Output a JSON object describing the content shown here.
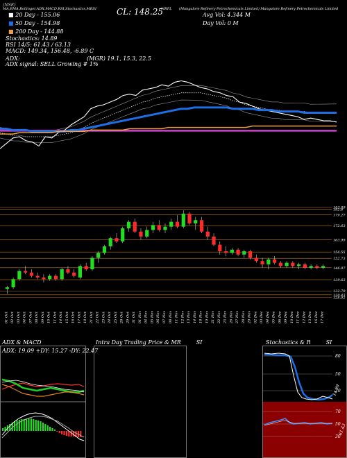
{
  "header": {
    "exchange_label": "(NSE)",
    "strip": [
      "MA,EMA,Bollinger,ADX,MACD,RSI,Stochastics,MRSI",
      "(Mangalore Refinery Petrochemicals Limited) Mangalore Refinery Petrochemicals Limited"
    ],
    "close": "CL: 148.25",
    "symbol": "MRPL",
    "avg_vol": "Avg Vol: 4.344  M",
    "day_vol": "Day Vol: 0  M",
    "ma20": "20  Day - 155.06",
    "ma50": "50  Day - 154.98",
    "ma200": "200  Day - 144.88",
    "stoch": "Stochastics: 14.89",
    "rsi": "RSI 14/5: 61.43 / 63.13",
    "macd": "MACD: 149.34, 156.48,  -6.89  C",
    "adx": "ADX:",
    "adx_vals": "(MGR) 19.1, 15.3, 22.5",
    "adx_signal": "ADX  signal: SELL  Growing  # 1%"
  },
  "colors": {
    "ma20": "#ffffff",
    "ma50": "#1e6ee6",
    "ma200": "#f0a040",
    "bb": "#aaaaaa",
    "up": "#22dd22",
    "down": "#ff2a2a",
    "magenta": "#cc44cc",
    "gridline": "#c07820"
  },
  "chart_data": [
    {
      "type": "line",
      "title": "Moving averages",
      "x": [
        "01 Oct",
        "02 Oct",
        "03 Oct",
        "04 Oct",
        "07 Oct",
        "08 Oct",
        "09 Oct",
        "10 Oct",
        "11 Oct",
        "14 Oct",
        "15 Oct",
        "16 Oct",
        "17 Oct",
        "18 Oct",
        "21 Oct",
        "22 Oct",
        "23 Oct",
        "24 Oct",
        "25 Oct",
        "28 Oct",
        "29 Oct",
        "31 Oct",
        "01 Nov",
        "04 Nov",
        "05 Nov",
        "06 Nov",
        "07 Nov",
        "08 Nov",
        "11 Nov",
        "12 Nov",
        "13 Nov",
        "14 Nov",
        "18 Nov",
        "19 Nov",
        "21 Nov",
        "22 Nov",
        "25 Nov",
        "26 Nov",
        "27 Nov",
        "28 Nov",
        "29 Nov",
        "02 Dec",
        "03 Dec",
        "04 Dec",
        "05 Dec",
        "06 Dec",
        "09 Dec",
        "10 Dec",
        "11 Dec",
        "12 Dec",
        "13 Dec",
        "16 Dec",
        "17 Dec"
      ],
      "series": [
        {
          "name": "Price",
          "values": [
            128,
            132,
            136,
            137,
            134,
            133,
            130,
            137,
            136,
            140,
            142,
            146,
            149,
            152,
            158,
            160,
            161,
            163,
            165,
            168,
            169,
            168,
            172,
            173,
            174,
            176,
            175,
            178,
            179,
            178,
            176,
            174,
            173,
            171,
            170,
            168,
            167,
            163,
            162,
            160,
            158,
            157,
            156,
            155,
            154,
            153,
            152,
            150,
            151,
            150,
            149,
            149,
            148
          ]
        },
        {
          "name": "20 Day",
          "values": [
            140,
            139,
            138,
            138,
            137,
            137,
            137,
            137,
            137,
            138,
            139,
            140,
            142,
            144,
            147,
            149,
            151,
            153,
            155,
            157,
            159,
            161,
            163,
            164,
            166,
            167,
            168,
            169,
            170,
            170,
            170,
            170,
            169,
            168,
            167,
            166,
            164,
            163,
            161,
            160,
            159,
            158,
            157,
            157,
            156,
            156,
            156,
            156,
            155,
            155,
            155,
            155,
            155
          ]
        },
        {
          "name": "50 Day",
          "values": [
            143,
            143,
            142,
            142,
            142,
            141,
            141,
            141,
            141,
            141,
            141,
            142,
            142,
            143,
            144,
            145,
            146,
            147,
            148,
            149,
            150,
            151,
            152,
            153,
            154,
            155,
            156,
            157,
            158,
            158,
            159,
            159,
            159,
            159,
            159,
            159,
            158,
            158,
            158,
            158,
            157,
            157,
            157,
            156,
            156,
            156,
            156,
            155,
            155,
            155,
            155,
            155,
            155
          ]
        },
        {
          "name": "200 Day",
          "values": [
            139,
            139,
            139,
            140,
            140,
            140,
            140,
            140,
            140,
            141,
            141,
            141,
            141,
            141,
            142,
            142,
            142,
            142,
            142,
            142,
            143,
            143,
            143,
            143,
            143,
            143,
            144,
            144,
            144,
            144,
            144,
            144,
            144,
            144,
            144,
            144,
            144,
            144,
            144,
            145,
            145,
            145,
            145,
            145,
            145,
            145,
            145,
            145,
            145,
            145,
            145,
            145,
            145
          ]
        }
      ]
    },
    {
      "type": "bar",
      "title": "Price candles",
      "y_ticks": [
        183.89,
        182.6,
        179.27,
        172.63,
        163.99,
        156.55,
        152.73,
        146.97,
        139.63,
        132.79,
        130.43,
        128.92
      ],
      "x": [
        "01 Oct",
        "02 Oct",
        "03 Oct",
        "04 Oct",
        "07 Oct",
        "08 Oct",
        "09 Oct",
        "10 Oct",
        "11 Oct",
        "14 Oct",
        "15 Oct",
        "16 Oct",
        "17 Oct",
        "18 Oct",
        "21 Oct",
        "22 Oct",
        "23 Oct",
        "24 Oct",
        "25 Oct",
        "28 Oct",
        "29 Oct",
        "31 Oct",
        "01 Nov",
        "04 Nov",
        "05 Nov",
        "06 Nov",
        "07 Nov",
        "08 Nov",
        "11 Nov",
        "12 Nov",
        "13 Nov",
        "14 Nov",
        "18 Nov",
        "19 Nov",
        "21 Nov",
        "22 Nov",
        "25 Nov",
        "26 Nov",
        "27 Nov",
        "28 Nov",
        "29 Nov",
        "02 Dec",
        "03 Dec",
        "04 Dec",
        "05 Dec",
        "06 Dec",
        "09 Dec",
        "10 Dec",
        "11 Dec",
        "12 Dec",
        "13 Dec",
        "16 Dec",
        "17 Dec"
      ],
      "candles": [
        {
          "o": 134,
          "h": 136,
          "l": 131,
          "c": 135
        },
        {
          "o": 135,
          "h": 141,
          "l": 134,
          "c": 140
        },
        {
          "o": 140,
          "h": 146,
          "l": 139,
          "c": 145
        },
        {
          "o": 145,
          "h": 148,
          "l": 143,
          "c": 144
        },
        {
          "o": 144,
          "h": 146,
          "l": 141,
          "c": 142
        },
        {
          "o": 142,
          "h": 144,
          "l": 140,
          "c": 141
        },
        {
          "o": 141,
          "h": 143,
          "l": 138,
          "c": 140
        },
        {
          "o": 140,
          "h": 143,
          "l": 139,
          "c": 142
        },
        {
          "o": 142,
          "h": 143,
          "l": 139,
          "c": 140
        },
        {
          "o": 140,
          "h": 147,
          "l": 139,
          "c": 146
        },
        {
          "o": 146,
          "h": 148,
          "l": 143,
          "c": 144
        },
        {
          "o": 144,
          "h": 146,
          "l": 141,
          "c": 142
        },
        {
          "o": 141,
          "h": 149,
          "l": 140,
          "c": 148
        },
        {
          "o": 148,
          "h": 150,
          "l": 145,
          "c": 146
        },
        {
          "o": 146,
          "h": 154,
          "l": 145,
          "c": 153
        },
        {
          "o": 153,
          "h": 157,
          "l": 150,
          "c": 156
        },
        {
          "o": 156,
          "h": 161,
          "l": 155,
          "c": 160
        },
        {
          "o": 160,
          "h": 166,
          "l": 158,
          "c": 165
        },
        {
          "o": 165,
          "h": 168,
          "l": 162,
          "c": 163
        },
        {
          "o": 163,
          "h": 172,
          "l": 162,
          "c": 171
        },
        {
          "o": 171,
          "h": 176,
          "l": 169,
          "c": 175
        },
        {
          "o": 175,
          "h": 177,
          "l": 168,
          "c": 169
        },
        {
          "o": 169,
          "h": 171,
          "l": 164,
          "c": 166
        },
        {
          "o": 166,
          "h": 172,
          "l": 165,
          "c": 170
        },
        {
          "o": 170,
          "h": 175,
          "l": 168,
          "c": 173
        },
        {
          "o": 173,
          "h": 176,
          "l": 169,
          "c": 170
        },
        {
          "o": 170,
          "h": 174,
          "l": 168,
          "c": 172
        },
        {
          "o": 172,
          "h": 177,
          "l": 170,
          "c": 175
        },
        {
          "o": 175,
          "h": 179,
          "l": 171,
          "c": 172
        },
        {
          "o": 172,
          "h": 182,
          "l": 171,
          "c": 180
        },
        {
          "o": 180,
          "h": 181,
          "l": 173,
          "c": 174
        },
        {
          "o": 174,
          "h": 178,
          "l": 170,
          "c": 176
        },
        {
          "o": 176,
          "h": 178,
          "l": 168,
          "c": 169
        },
        {
          "o": 169,
          "h": 172,
          "l": 164,
          "c": 166
        },
        {
          "o": 166,
          "h": 168,
          "l": 160,
          "c": 161
        },
        {
          "o": 161,
          "h": 163,
          "l": 155,
          "c": 157
        },
        {
          "o": 157,
          "h": 160,
          "l": 154,
          "c": 156
        },
        {
          "o": 156,
          "h": 159,
          "l": 155,
          "c": 158
        },
        {
          "o": 158,
          "h": 159,
          "l": 154,
          "c": 155
        },
        {
          "o": 155,
          "h": 158,
          "l": 153,
          "c": 157
        },
        {
          "o": 157,
          "h": 158,
          "l": 152,
          "c": 153
        },
        {
          "o": 153,
          "h": 155,
          "l": 150,
          "c": 151
        },
        {
          "o": 151,
          "h": 153,
          "l": 147,
          "c": 149
        },
        {
          "o": 149,
          "h": 153,
          "l": 146,
          "c": 152
        },
        {
          "o": 152,
          "h": 154,
          "l": 149,
          "c": 150
        },
        {
          "o": 150,
          "h": 151,
          "l": 147,
          "c": 148
        },
        {
          "o": 148,
          "h": 151,
          "l": 147,
          "c": 150
        },
        {
          "o": 150,
          "h": 151,
          "l": 147,
          "c": 148
        },
        {
          "o": 148,
          "h": 150,
          "l": 146,
          "c": 149
        },
        {
          "o": 149,
          "h": 150,
          "l": 146,
          "c": 147
        },
        {
          "o": 147,
          "h": 149,
          "l": 146,
          "c": 148
        },
        {
          "o": 148,
          "h": 149,
          "l": 146,
          "c": 147
        },
        {
          "o": 147,
          "h": 149,
          "l": 146,
          "c": 148
        }
      ]
    }
  ],
  "panels": {
    "adx_title": "ADX  & MACD",
    "adx_readout": "ADX: 19.09 +DY: 15.27 -DY: 22.47",
    "intraday_title": "Intra  Day Trading Price  & MR",
    "intraday_suffix": "SI",
    "stoch_title": "Stochastics & R",
    "stoch_suffix": "SI",
    "stoch_ticks": [
      "80",
      "50",
      "20"
    ],
    "stoch_value": "14.89",
    "rsi_ticks": [
      "70",
      "50",
      "30"
    ],
    "rsi_value": "61.43"
  }
}
